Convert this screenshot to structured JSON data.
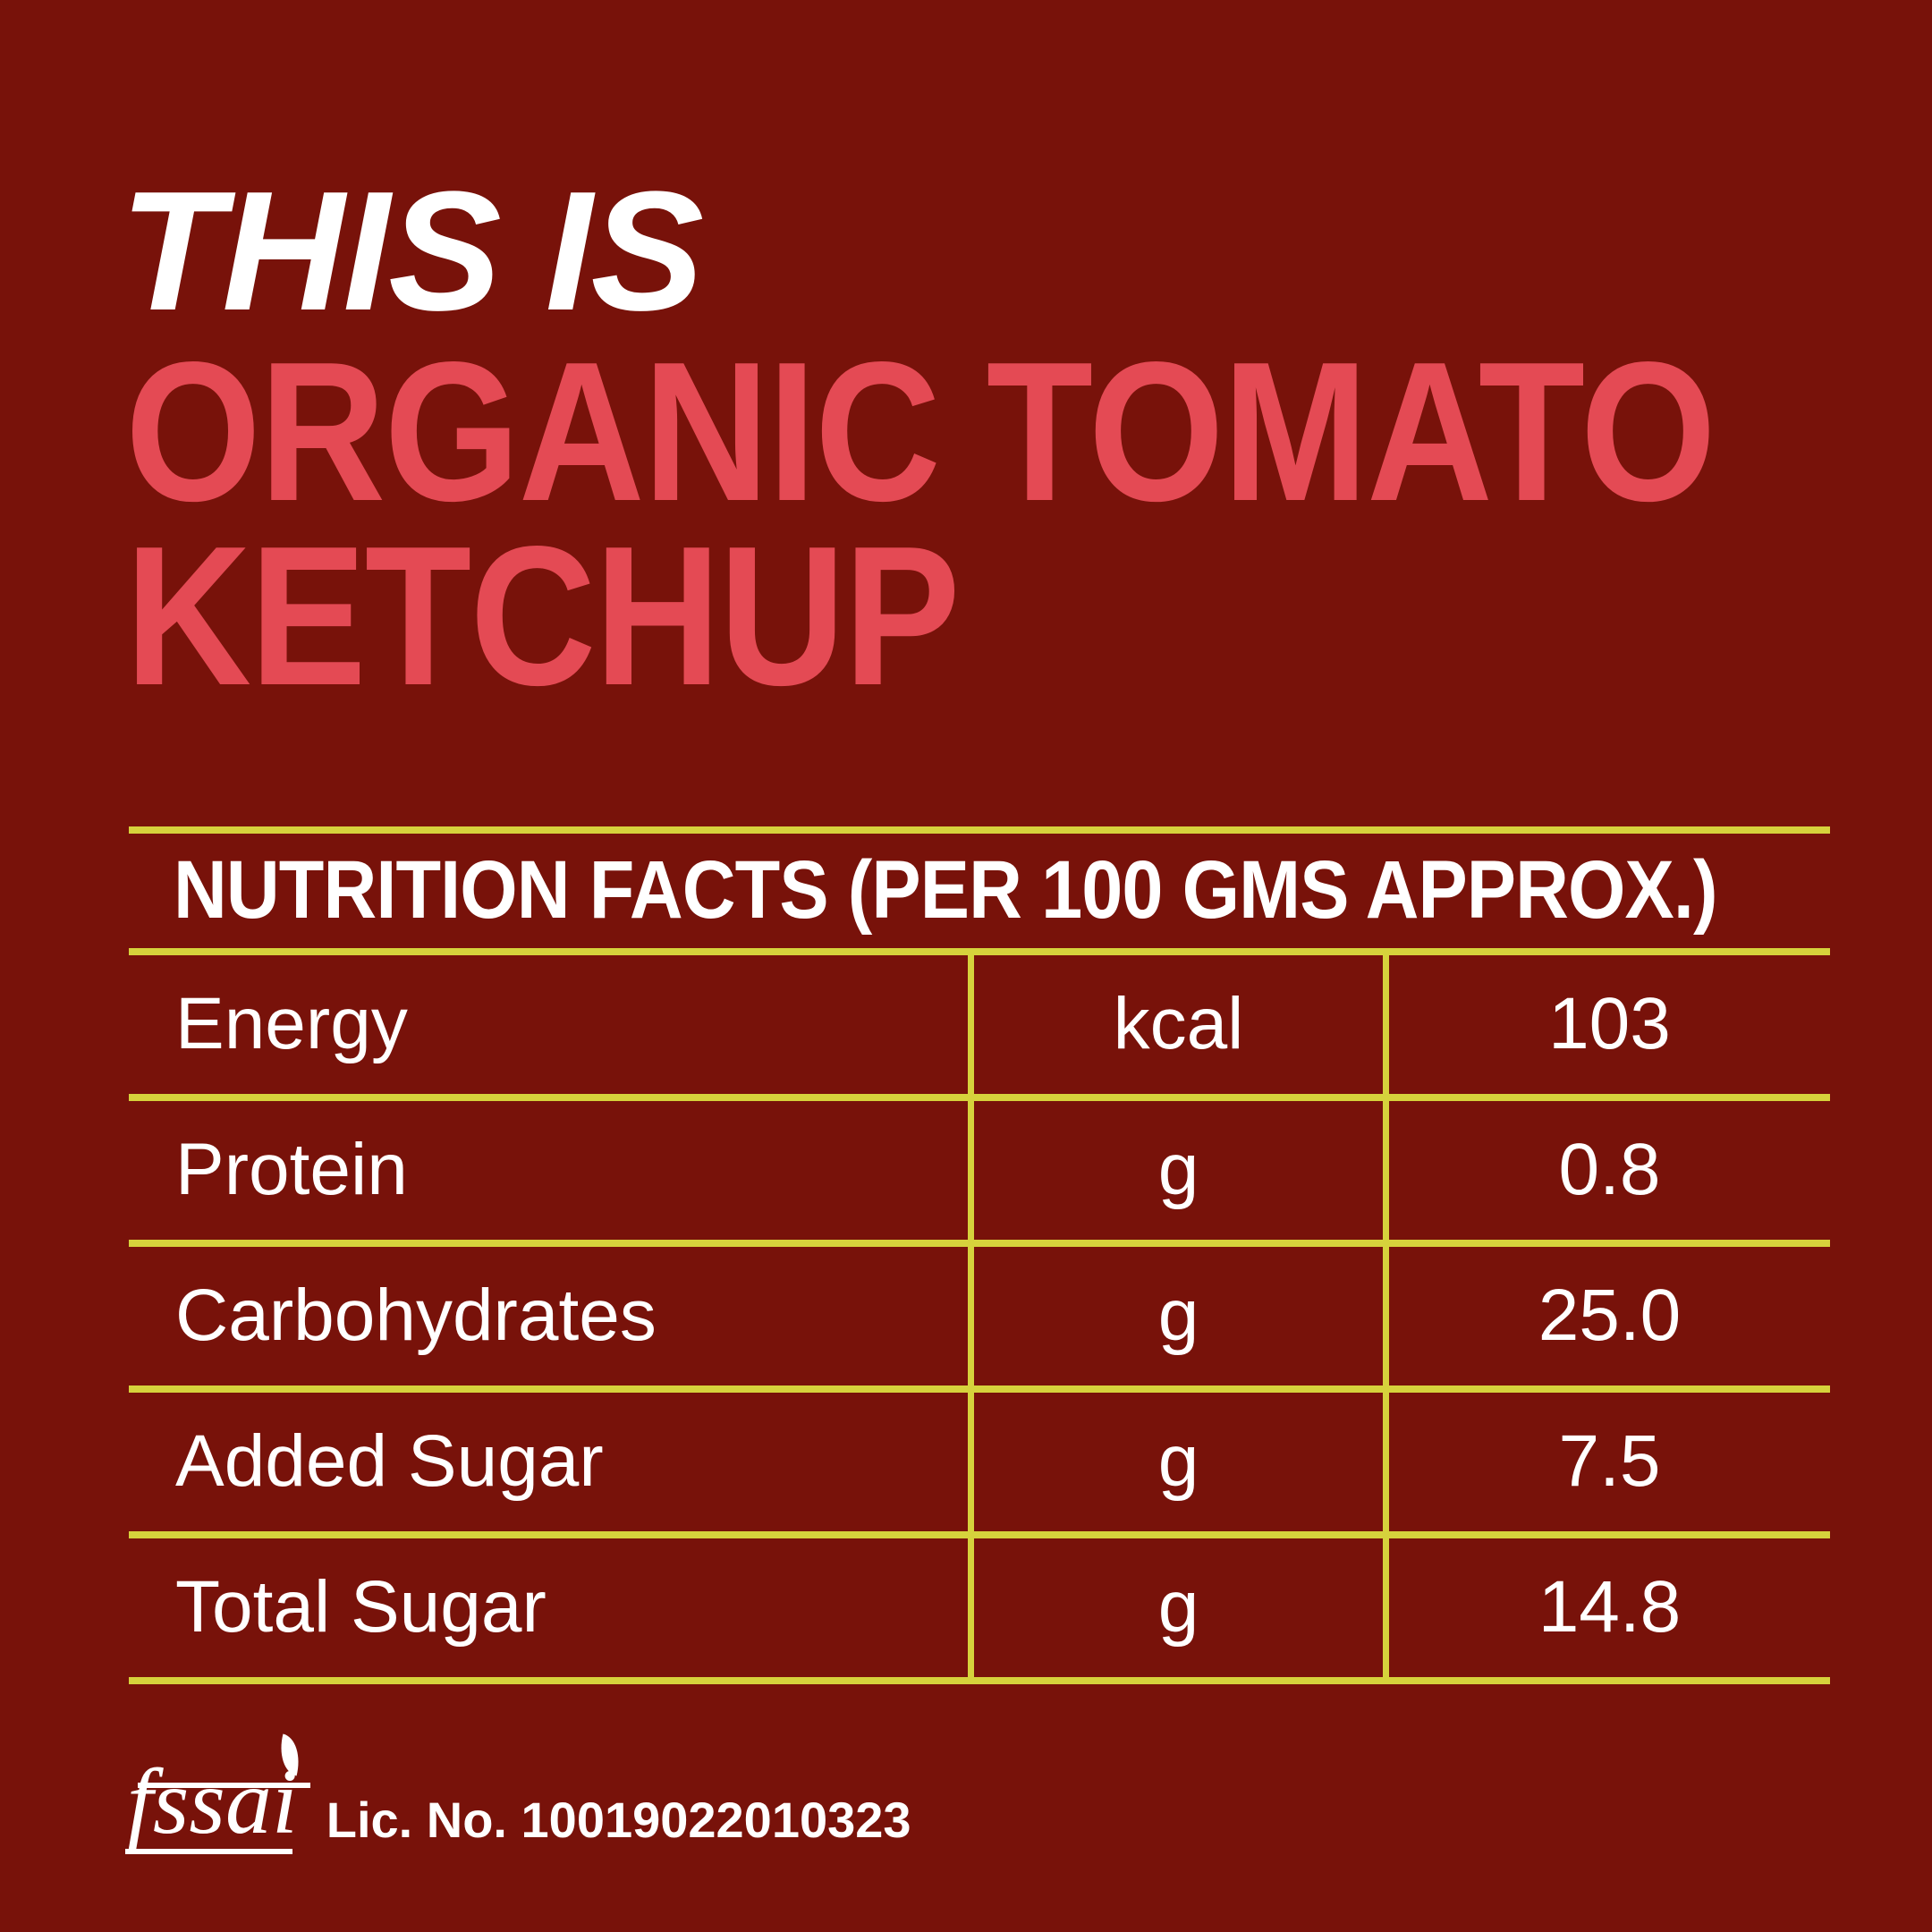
{
  "colors": {
    "background": "#78120A",
    "accent_pink": "#E44A54",
    "line_yellow": "#D6D23C",
    "text_white": "#FFFFFF"
  },
  "header": {
    "line1": "THIS IS",
    "line2": "ORGANIC TOMATO",
    "line3": "KETCHUP"
  },
  "table": {
    "title": "NUTRITION FACTS (PER 100 GMS APPROX.)",
    "rows": [
      {
        "label": "Energy",
        "unit": "kcal",
        "value": "103"
      },
      {
        "label": "Protein",
        "unit": "g",
        "value": "0.8"
      },
      {
        "label": "Carbohydrates",
        "unit": "g",
        "value": "25.0"
      },
      {
        "label": "Added Sugar",
        "unit": "g",
        "value": "7.5"
      },
      {
        "label": "Total Sugar",
        "unit": "g",
        "value": "14.8"
      }
    ]
  },
  "footer": {
    "logo_text": "fssai",
    "license_label": "Lic. No. 10019022010323"
  }
}
